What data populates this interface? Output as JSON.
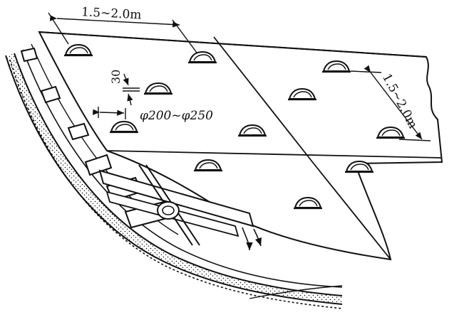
{
  "labels": {
    "spacing_top": "1.5~2.0m",
    "spacing_right": "1.5~2.0m",
    "depth": "30",
    "diameter": "φ200~φ250"
  },
  "colors": {
    "ink": "#111111",
    "paper": "#ffffff"
  }
}
